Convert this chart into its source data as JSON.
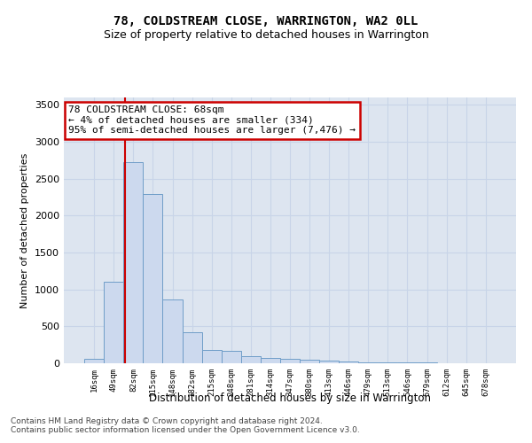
{
  "title": "78, COLDSTREAM CLOSE, WARRINGTON, WA2 0LL",
  "subtitle": "Size of property relative to detached houses in Warrington",
  "xlabel": "Distribution of detached houses by size in Warrington",
  "ylabel": "Number of detached properties",
  "bar_color": "#ccd9ee",
  "bar_edge_color": "#6f9dc8",
  "grid_color": "#c8d4e8",
  "bg_color": "#dde5f0",
  "categories": [
    "16sqm",
    "49sqm",
    "82sqm",
    "115sqm",
    "148sqm",
    "182sqm",
    "215sqm",
    "248sqm",
    "281sqm",
    "314sqm",
    "347sqm",
    "380sqm",
    "413sqm",
    "446sqm",
    "479sqm",
    "513sqm",
    "546sqm",
    "579sqm",
    "612sqm",
    "645sqm",
    "678sqm"
  ],
  "values": [
    55,
    1100,
    2730,
    2290,
    870,
    420,
    175,
    165,
    95,
    70,
    55,
    45,
    35,
    20,
    18,
    15,
    10,
    8,
    5,
    4,
    3
  ],
  "annotation_text": "78 COLDSTREAM CLOSE: 68sqm\n← 4% of detached houses are smaller (334)\n95% of semi-detached houses are larger (7,476) →",
  "annotation_box_color": "#ffffff",
  "annotation_box_edge": "#cc0000",
  "red_line_color": "#cc0000",
  "ylim": [
    0,
    3600
  ],
  "yticks": [
    0,
    500,
    1000,
    1500,
    2000,
    2500,
    3000,
    3500
  ],
  "footer1": "Contains HM Land Registry data © Crown copyright and database right 2024.",
  "footer2": "Contains public sector information licensed under the Open Government Licence v3.0."
}
